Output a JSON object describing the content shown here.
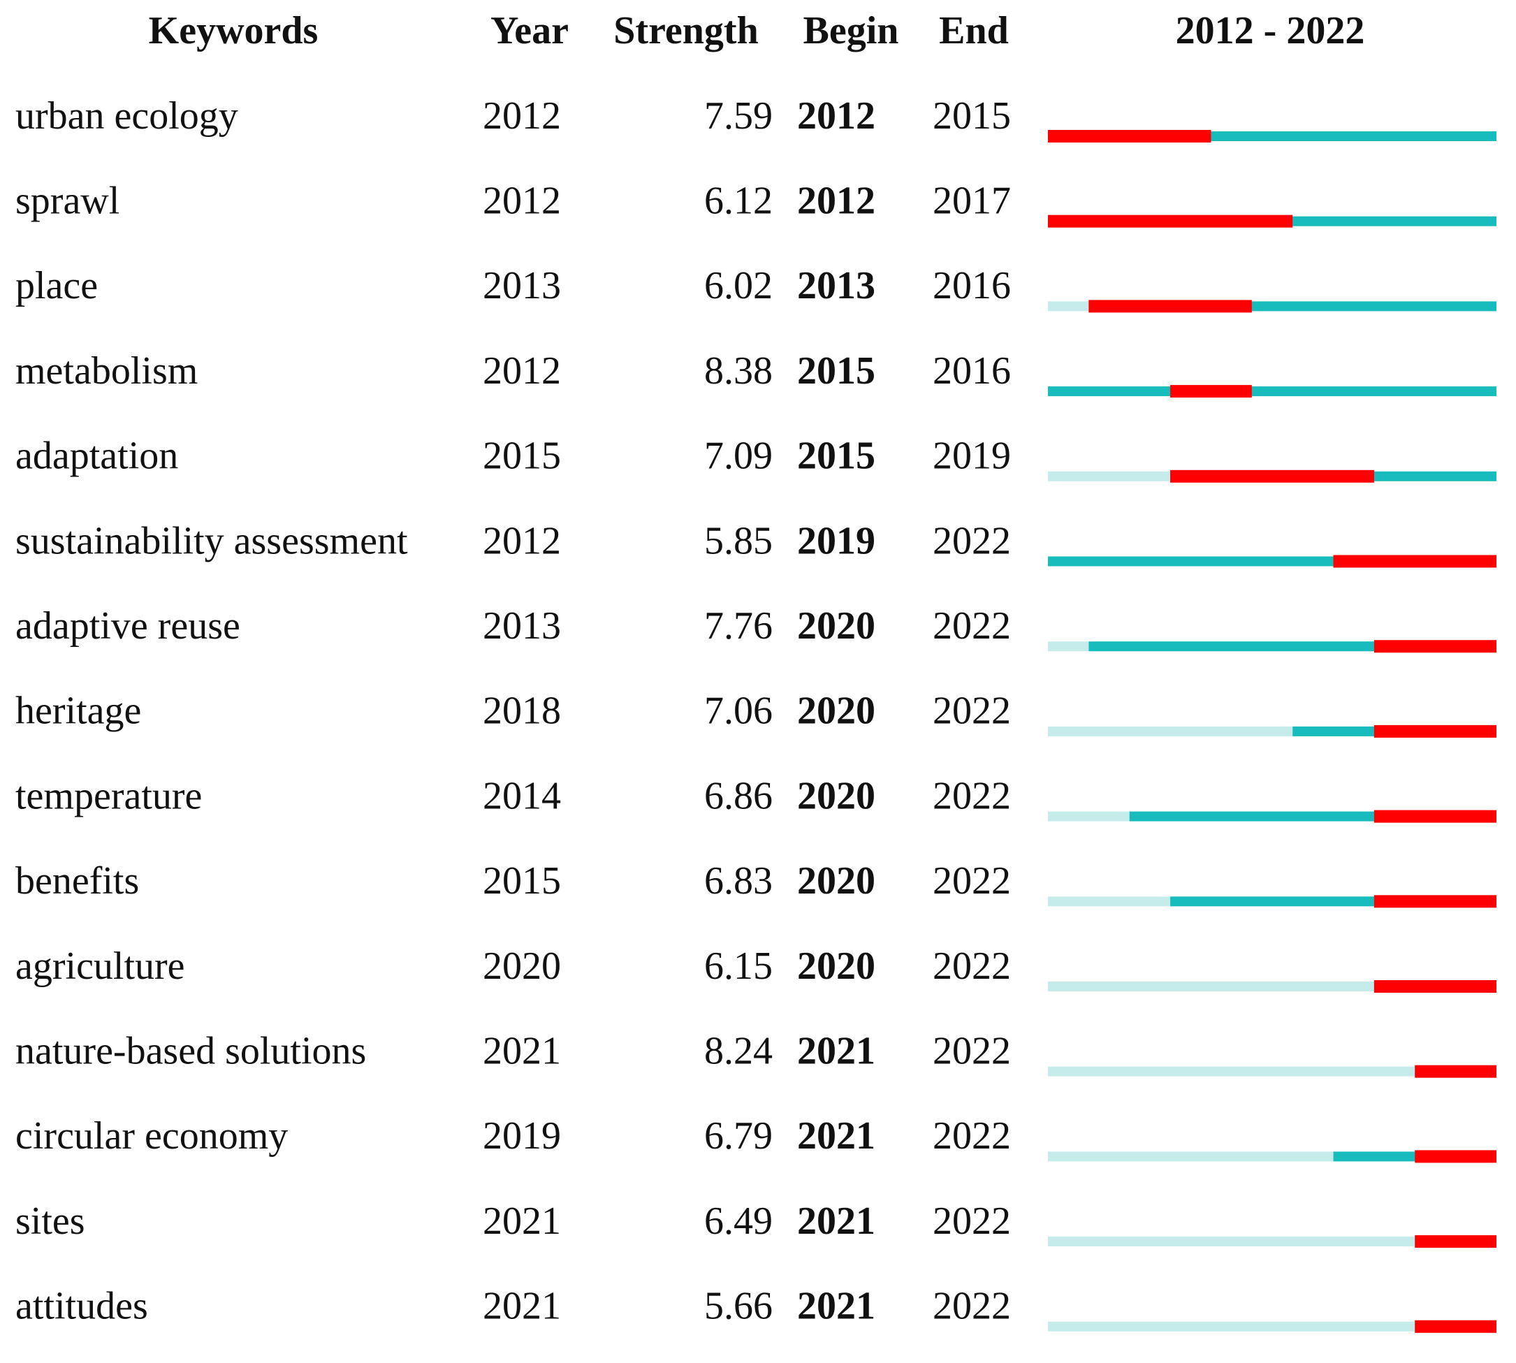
{
  "header": {
    "keyword": "Keywords",
    "year": "Year",
    "strength": "Strength",
    "begin": "Begin",
    "end": "End"
  },
  "timeline": {
    "label": "2012 - 2022",
    "start": 2012,
    "end": 2022
  },
  "rows": [
    {
      "keyword": "urban ecology",
      "year": 2012,
      "strength": 7.59,
      "begin": 2012,
      "end": 2015
    },
    {
      "keyword": "sprawl",
      "year": 2012,
      "strength": 6.12,
      "begin": 2012,
      "end": 2017
    },
    {
      "keyword": "place",
      "year": 2013,
      "strength": 6.02,
      "begin": 2013,
      "end": 2016
    },
    {
      "keyword": "metabolism",
      "year": 2012,
      "strength": 8.38,
      "begin": 2015,
      "end": 2016
    },
    {
      "keyword": "adaptation",
      "year": 2015,
      "strength": 7.09,
      "begin": 2015,
      "end": 2019
    },
    {
      "keyword": "sustainability assessment",
      "year": 2012,
      "strength": 5.85,
      "begin": 2019,
      "end": 2022
    },
    {
      "keyword": "adaptive reuse",
      "year": 2013,
      "strength": 7.76,
      "begin": 2020,
      "end": 2022
    },
    {
      "keyword": "heritage",
      "year": 2018,
      "strength": 7.06,
      "begin": 2020,
      "end": 2022
    },
    {
      "keyword": "temperature",
      "year": 2014,
      "strength": 6.86,
      "begin": 2020,
      "end": 2022
    },
    {
      "keyword": "benefits",
      "year": 2015,
      "strength": 6.83,
      "begin": 2020,
      "end": 2022
    },
    {
      "keyword": "agriculture",
      "year": 2020,
      "strength": 6.15,
      "begin": 2020,
      "end": 2022
    },
    {
      "keyword": "nature-based solutions",
      "year": 2021,
      "strength": 8.24,
      "begin": 2021,
      "end": 2022
    },
    {
      "keyword": "circular economy",
      "year": 2019,
      "strength": 6.79,
      "begin": 2021,
      "end": 2022
    },
    {
      "keyword": "sites",
      "year": 2021,
      "strength": 6.49,
      "begin": 2021,
      "end": 2022
    },
    {
      "keyword": "attitudes",
      "year": 2021,
      "strength": 5.66,
      "begin": 2021,
      "end": 2022
    }
  ]
}
